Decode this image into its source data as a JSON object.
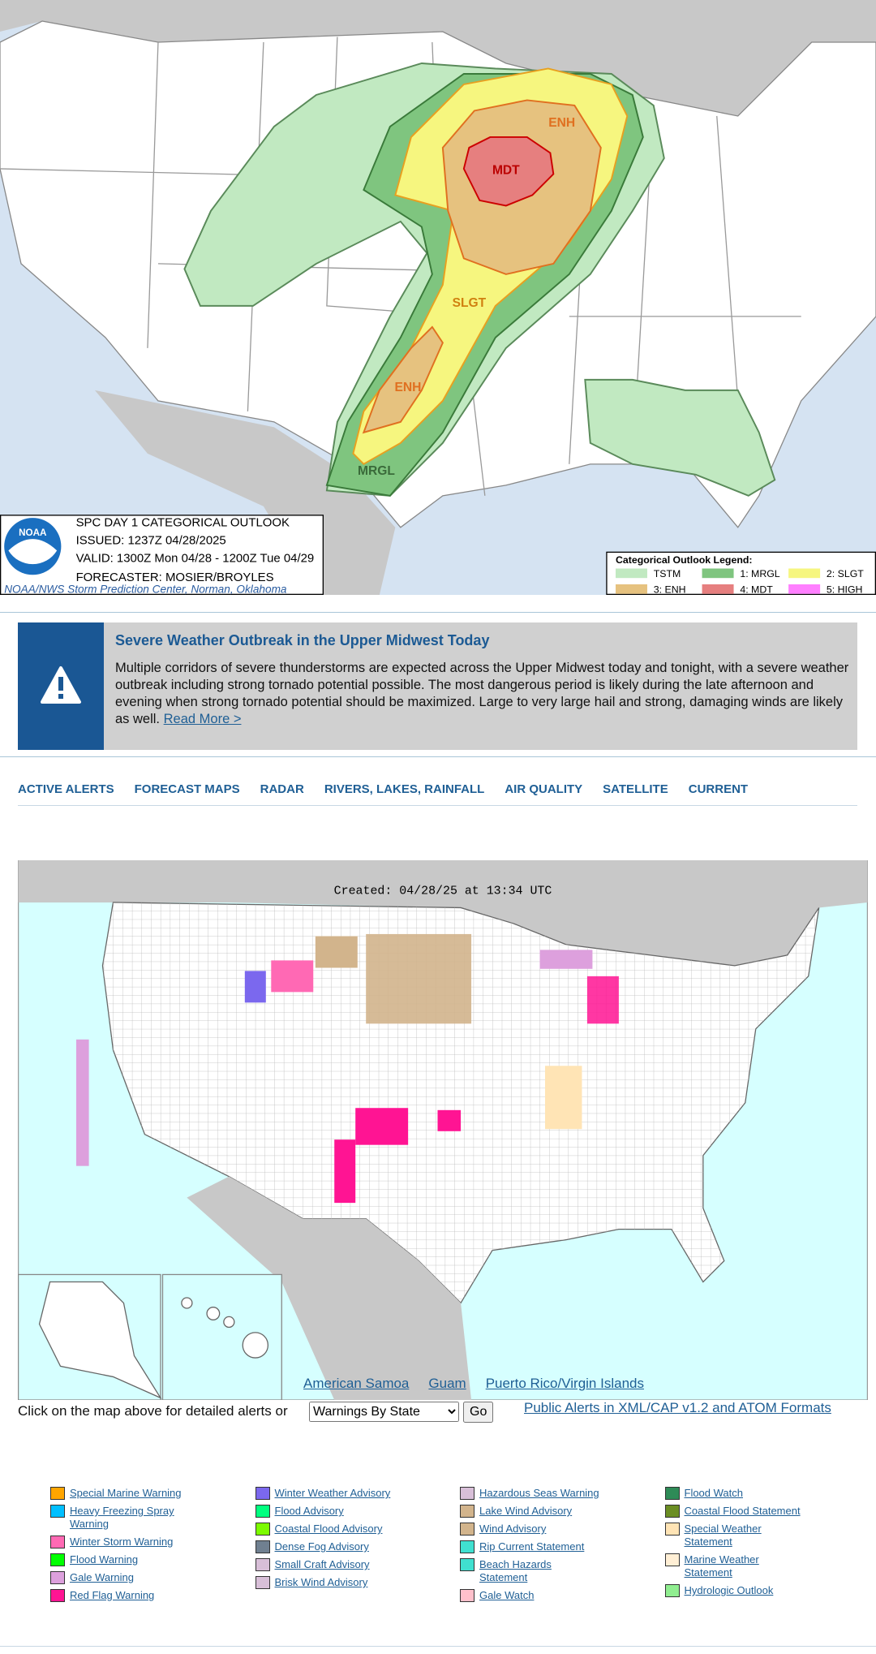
{
  "outlook_map": {
    "title": "SPC DAY 1 CATEGORICAL OUTLOOK",
    "issued": "ISSUED: 1237Z 04/28/2025",
    "valid": "VALID: 1300Z Mon 04/28 - 1200Z Tue 04/29",
    "forecaster": "FORECASTER: MOSIER/BROYLES",
    "credit": "NOAA/NWS Storm Prediction Center, Norman, Oklahoma",
    "logo": "NOAA",
    "risk_labels": [
      "MDT",
      "ENH",
      "SLGT",
      "ENH",
      "MRGL"
    ],
    "legend_title": "Categorical Outlook Legend:",
    "legend": [
      {
        "label": "TSTM",
        "color": "#c1e9c1"
      },
      {
        "label": "1: MRGL",
        "color": "#7fc57f"
      },
      {
        "label": "2: SLGT",
        "color": "#f6f67f"
      },
      {
        "label": "3: ENH",
        "color": "#e6c27f"
      },
      {
        "label": "4: MDT",
        "color": "#e67f7f"
      },
      {
        "label": "5: HIGH",
        "color": "#ff7fff"
      }
    ]
  },
  "alert": {
    "title": "Severe Weather Outbreak in the Upper Midwest Today",
    "body": "Multiple corridors of severe thunderstorms are expected across the Upper Midwest today and tonight, with a severe weather outbreak including strong tornado potential possible. The most dangerous period is likely during the late afternoon and evening when strong tornado potential should be maximized. Large to very large hail and strong, damaging winds are likely as well.",
    "link": "Read More >"
  },
  "nav": [
    "ACTIVE ALERTS",
    "FORECAST MAPS",
    "RADAR",
    "RIVERS, LAKES, RAINFALL",
    "AIR QUALITY",
    "SATELLITE",
    "CURRENT"
  ],
  "hazard_map": {
    "created": "Created: 04/28/25 at 13:34 UTC",
    "territories": [
      "American Samoa",
      "Guam",
      "Puerto Rico/Virgin Islands"
    ],
    "prompt": "Click on the map above for detailed alerts or",
    "select": "Warnings By State",
    "button": "Go",
    "xml_link": "Public Alerts in XML/CAP v1.2 and ATOM Formats"
  },
  "legend": [
    [
      {
        "label": "Special Marine Warning",
        "color": "#FFA500"
      },
      {
        "label": "Heavy Freezing Spray Warning",
        "color": "#00BFFF"
      },
      {
        "label": "Winter Storm Warning",
        "color": "#FF69B4"
      },
      {
        "label": "Flood Warning",
        "color": "#00FF00"
      },
      {
        "label": "Gale Warning",
        "color": "#DDA0DD"
      },
      {
        "label": "Red Flag Warning",
        "color": "#FF1493"
      }
    ],
    [
      {
        "label": "Winter Weather Advisory",
        "color": "#7B68EE"
      },
      {
        "label": "Flood Advisory",
        "color": "#00FF7F"
      },
      {
        "label": "Coastal Flood Advisory",
        "color": "#7CFC00"
      },
      {
        "label": "Dense Fog Advisory",
        "color": "#708090"
      },
      {
        "label": "Small Craft Advisory",
        "color": "#D8BFD8"
      },
      {
        "label": "Brisk Wind Advisory",
        "color": "#D8BFD8"
      }
    ],
    [
      {
        "label": "Hazardous Seas Warning",
        "color": "#D8BFD8"
      },
      {
        "label": "Lake Wind Advisory",
        "color": "#D2B48C"
      },
      {
        "label": "Wind Advisory",
        "color": "#D2B48C"
      },
      {
        "label": "Rip Current Statement",
        "color": "#40E0D0"
      },
      {
        "label": "Beach Hazards Statement",
        "color": "#40E0D0"
      },
      {
        "label": "Gale Watch",
        "color": "#FFC0CB"
      }
    ],
    [
      {
        "label": "Flood Watch",
        "color": "#2E8B57"
      },
      {
        "label": "Coastal Flood Statement",
        "color": "#6B8E23"
      },
      {
        "label": "Special Weather Statement",
        "color": "#FFE4B5"
      },
      {
        "label": "Marine Weather Statement",
        "color": "#FFEFD5"
      },
      {
        "label": "Hydrologic Outlook",
        "color": "#90EE90"
      }
    ]
  ]
}
